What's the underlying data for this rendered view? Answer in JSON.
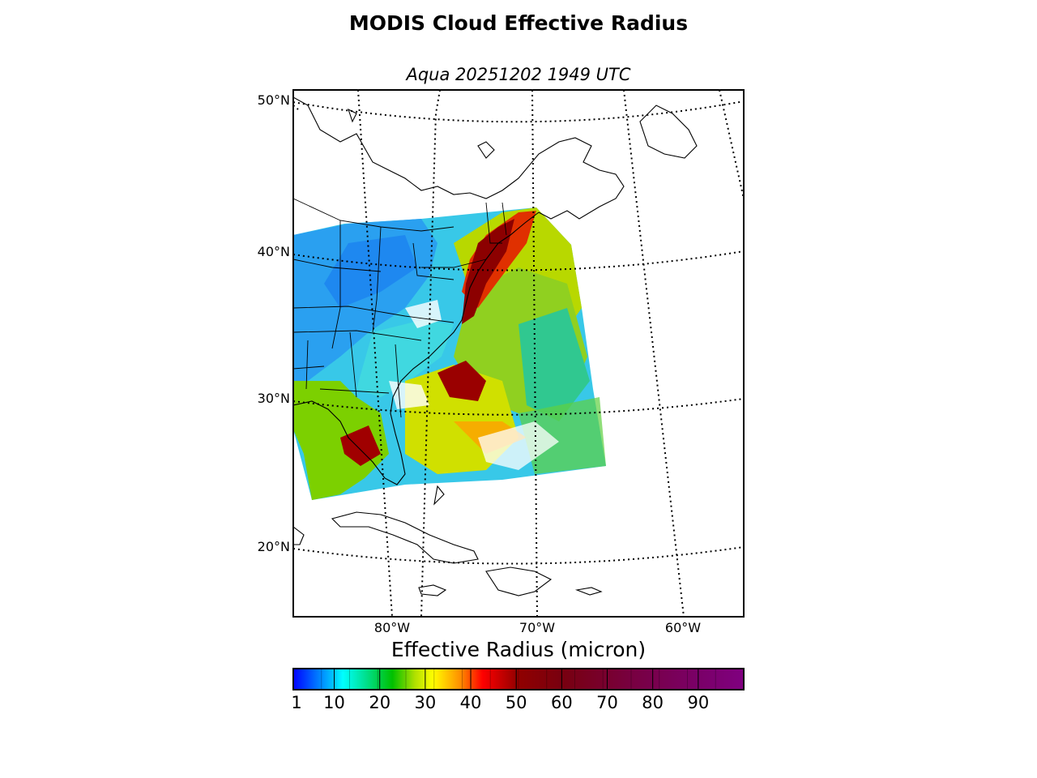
{
  "title": "MODIS Cloud Effective Radius",
  "subtitle": "Aqua 20251202 1949 UTC",
  "map": {
    "latitude_labels": [
      "50°N",
      "40°N",
      "30°N",
      "20°N"
    ],
    "longitude_labels": [
      "80°W",
      "70°W",
      "60°W"
    ]
  },
  "colorbar": {
    "title": "Effective Radius (micron)",
    "tick_labels": [
      "1",
      "10",
      "20",
      "30",
      "40",
      "50",
      "60",
      "70",
      "80",
      "90"
    ],
    "range": [
      1,
      100
    ],
    "colors": [
      "#0000ff",
      "#0060ff",
      "#00b0ff",
      "#00ffff",
      "#00e090",
      "#00c000",
      "#a0e000",
      "#ffff00",
      "#ffa000",
      "#ff0000",
      "#b00000",
      "#800000",
      "#7a0020",
      "#7a0040",
      "#7a0060",
      "#800080"
    ]
  },
  "chart_data": {
    "type": "heatmap",
    "title": "MODIS Cloud Effective Radius",
    "subtitle": "Aqua 20251202 1949 UTC",
    "colorbar_label": "Effective Radius (micron)",
    "value_range": [
      1,
      100
    ],
    "lat_ticks": [
      20,
      30,
      40,
      50
    ],
    "lon_ticks": [
      -80,
      -70,
      -60
    ],
    "grid": true
  }
}
